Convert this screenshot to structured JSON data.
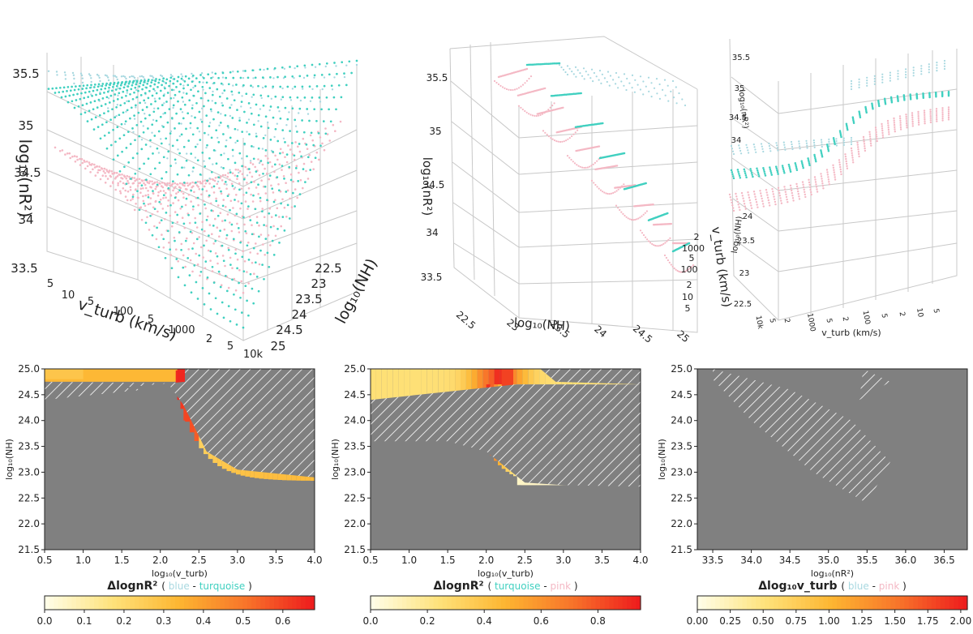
{
  "colors": {
    "blue": "#a8d8e0",
    "turquoise": "#40d0c0",
    "pink": "#f4b8c4",
    "background_gray": "#808080",
    "hatch": "#ffffff",
    "colormap": [
      "#fffde6",
      "#fee27a",
      "#fdb531",
      "#f8742a",
      "#ee1d1d"
    ]
  },
  "chart_data": [
    {
      "type": "scatter",
      "projection": "3d",
      "zlabel": "log₁₀(nR²)",
      "xlabel": "v_turb (km/s)",
      "ylabel": "log₁₀(NH)",
      "z_ticks": [
        "33.5",
        "34",
        "34.5",
        "35",
        "35.5"
      ],
      "x_ticks": [
        "5",
        "10",
        "5",
        "100",
        "5",
        "1000",
        "2",
        "5",
        "10k"
      ],
      "y_ticks": [
        "22.5",
        "23",
        "23.5",
        "24",
        "24.5",
        "25"
      ],
      "series": [
        {
          "color": "turquoise"
        },
        {
          "color": "pink"
        },
        {
          "color": "blue"
        }
      ]
    },
    {
      "type": "scatter",
      "projection": "3d",
      "zlabel": "log₁₀(nR²)",
      "xlabel": "log₁₀(NH)",
      "ylabel": "v_turb (km/s)",
      "z_ticks": [
        "33.5",
        "34",
        "34.5",
        "35",
        "35.5"
      ],
      "x_ticks": [
        "22.5",
        "23",
        "23.5",
        "24",
        "24.5",
        "25"
      ],
      "y_ticks": [
        "5",
        "10",
        "2",
        "100",
        "5",
        "1000",
        "2",
        "10k"
      ],
      "series": [
        {
          "color": "turquoise"
        },
        {
          "color": "pink"
        },
        {
          "color": "blue"
        }
      ]
    },
    {
      "type": "scatter",
      "projection": "3d",
      "zlabel": "log₁₀(nR²)",
      "xlabel": "v_turb (km/s)",
      "ylabel": "log₁₀(NH)",
      "z_ticks": [
        "34",
        "34.5",
        "35",
        "35.5"
      ],
      "y_ticks": [
        "22.5",
        "23",
        "23.5",
        "24"
      ],
      "x_ticks": [
        "10k",
        "5",
        "2",
        "1000",
        "5",
        "2",
        "100",
        "5",
        "2",
        "10",
        "5"
      ],
      "series": [
        {
          "color": "blue"
        },
        {
          "color": "turquoise"
        },
        {
          "color": "pink"
        }
      ]
    },
    {
      "type": "heatmap",
      "xlabel": "log₁₀(v_turb)",
      "ylabel": "log₁₀(NH)",
      "xlim": [
        0.5,
        4.0
      ],
      "ylim": [
        21.5,
        25.0
      ],
      "x_ticks": [
        "0.5",
        "1.0",
        "1.5",
        "2.0",
        "2.5",
        "3.0",
        "3.5",
        "4.0"
      ],
      "y_ticks": [
        "21.5",
        "22.0",
        "22.5",
        "23.0",
        "23.5",
        "24.0",
        "24.5",
        "25.0"
      ],
      "colorbar": {
        "label": "ΔlognR²",
        "legend_a": "blue",
        "legend_sep": "-",
        "legend_b": "turquoise",
        "range": [
          0.0,
          0.68
        ],
        "ticks": [
          "0.0",
          "0.1",
          "0.2",
          "0.3",
          "0.4",
          "0.5",
          "0.6"
        ]
      }
    },
    {
      "type": "heatmap",
      "xlabel": "log₁₀(v_turb)",
      "ylabel": "log₁₀(NH)",
      "xlim": [
        0.5,
        4.0
      ],
      "ylim": [
        21.5,
        25.0
      ],
      "x_ticks": [
        "0.5",
        "1.0",
        "1.5",
        "2.0",
        "2.5",
        "3.0",
        "3.5",
        "4.0"
      ],
      "y_ticks": [
        "21.5",
        "22.0",
        "22.5",
        "23.0",
        "23.5",
        "24.0",
        "24.5",
        "25.0"
      ],
      "colorbar": {
        "label": "ΔlognR²",
        "legend_a": "turquoise",
        "legend_sep": "-",
        "legend_b": "pink",
        "range": [
          0.0,
          0.95
        ],
        "ticks": [
          "0.0",
          "0.2",
          "0.4",
          "0.6",
          "0.8"
        ]
      }
    },
    {
      "type": "heatmap",
      "xlabel": "log₁₀(nR²)",
      "ylabel": "log₁₀(NH)",
      "xlim": [
        33.3,
        36.8
      ],
      "ylim": [
        21.5,
        25.0
      ],
      "x_ticks": [
        "33.5",
        "34.0",
        "34.5",
        "35.0",
        "35.5",
        "36.0",
        "36.5"
      ],
      "y_ticks": [
        "21.5",
        "22.0",
        "22.5",
        "23.0",
        "23.5",
        "24.0",
        "24.5",
        "25.0"
      ],
      "colorbar": {
        "label": "Δlog₁₀v_turb",
        "legend_a": "blue",
        "legend_sep": "-",
        "legend_b": "pink",
        "range": [
          0.0,
          2.05
        ],
        "ticks": [
          "0.00",
          "0.25",
          "0.50",
          "0.75",
          "1.00",
          "1.25",
          "1.50",
          "1.75",
          "2.00"
        ]
      }
    }
  ]
}
